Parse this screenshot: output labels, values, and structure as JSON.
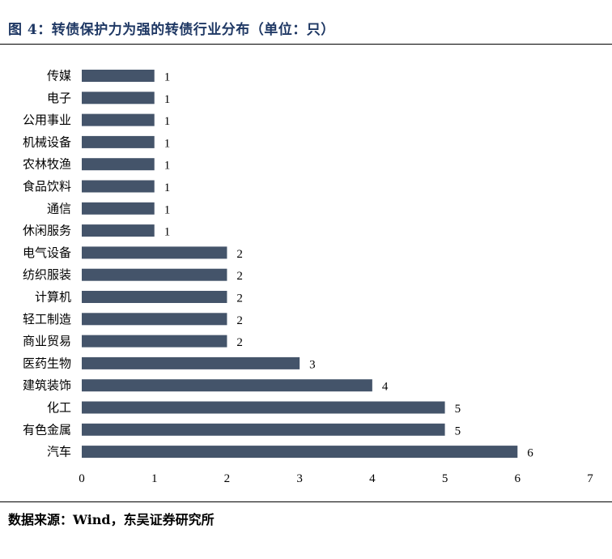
{
  "figure": {
    "title": "图 4：转债保护力为强的转债行业分布（单位：只）",
    "source": "数据来源：Wind，东吴证券研究所"
  },
  "colors": {
    "bar": "#44546a",
    "title": "#1f3864"
  },
  "chart_data": {
    "type": "bar",
    "orientation": "horizontal",
    "categories": [
      "传媒",
      "电子",
      "公用事业",
      "机械设备",
      "农林牧渔",
      "食品饮料",
      "通信",
      "休闲服务",
      "电气设备",
      "纺织服装",
      "计算机",
      "轻工制造",
      "商业贸易",
      "医药生物",
      "建筑装饰",
      "化工",
      "有色金属",
      "汽车"
    ],
    "values": [
      1,
      1,
      1,
      1,
      1,
      1,
      1,
      1,
      2,
      2,
      2,
      2,
      2,
      3,
      4,
      5,
      5,
      6
    ],
    "xlim": [
      0,
      7
    ],
    "xticks": [
      0,
      1,
      2,
      3,
      4,
      5,
      6,
      7
    ],
    "grid": false,
    "legend": "none",
    "data_labels": true
  }
}
